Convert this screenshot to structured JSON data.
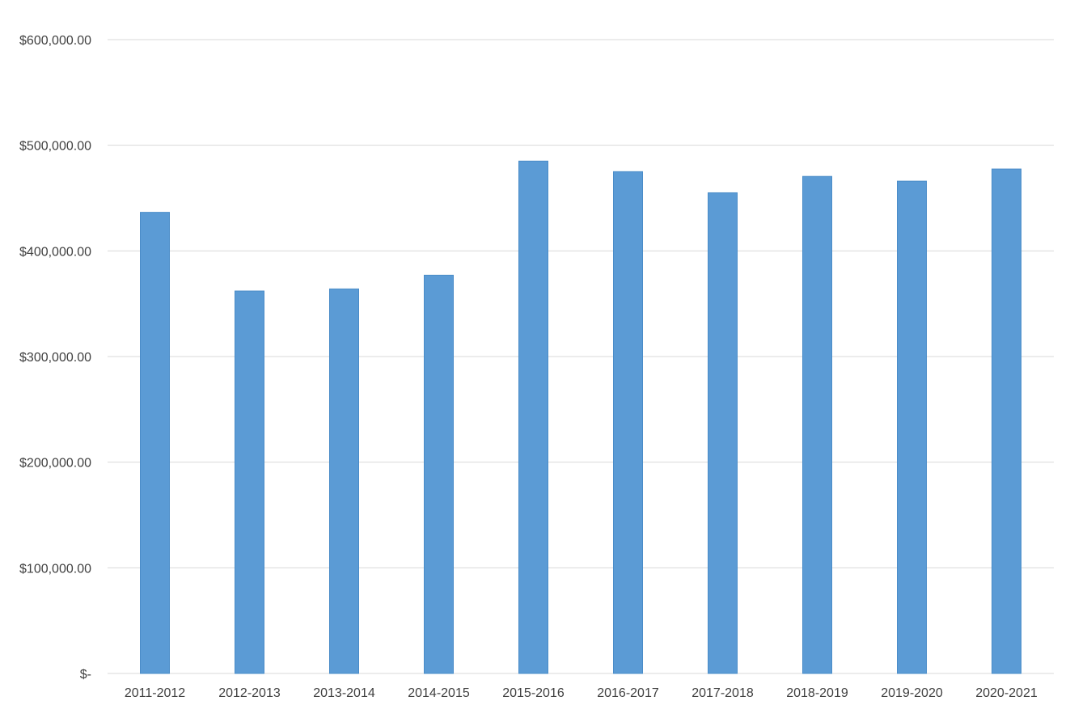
{
  "chart_data": {
    "type": "bar",
    "title": "",
    "xlabel": "",
    "ylabel": "",
    "categories": [
      "2011-2012",
      "2012-2013",
      "2013-2014",
      "2014-2015",
      "2015-2016",
      "2016-2017",
      "2017-2018",
      "2018-2019",
      "2019-2020",
      "2020-2021"
    ],
    "values": [
      436500,
      362000,
      364000,
      377000,
      485000,
      475000,
      455000,
      470500,
      466000,
      477500
    ],
    "ylim": [
      0,
      600000
    ],
    "yticks": [
      0,
      100000,
      200000,
      300000,
      400000,
      500000,
      600000
    ],
    "ytick_labels": [
      "$-",
      "$100,000.00",
      "$200,000.00",
      "$300,000.00",
      "$400,000.00",
      "$500,000.00",
      "$600,000.00"
    ],
    "grid": true,
    "legend": "none",
    "bar_color": "#5b9bd5"
  }
}
